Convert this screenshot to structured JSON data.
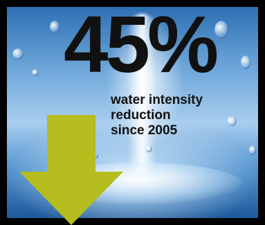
{
  "headline": {
    "value": "45%"
  },
  "caption": {
    "line1": "water intensity",
    "line2": "reduction",
    "line3": "since 2005"
  },
  "colors": {
    "frame": "#000000",
    "text": "#111111",
    "arrow": "#b5bd1f"
  },
  "icons": {
    "arrow": "down-arrow-icon"
  }
}
